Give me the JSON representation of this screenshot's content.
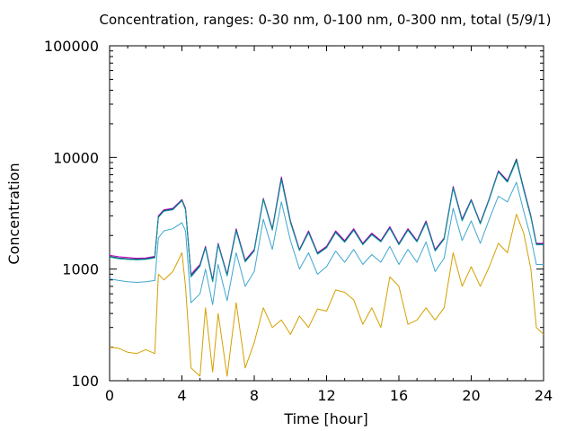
{
  "chart_data": {
    "type": "line",
    "title": "Concentration, ranges: 0-30 nm, 0-100 nm, 0-300 nm, total (5/9/1)",
    "xlabel": "Time [hour]",
    "ylabel": "Concentration",
    "xlim": [
      0,
      24
    ],
    "ylim": [
      100,
      100000
    ],
    "yscale": "log",
    "grid": false,
    "x_ticks": [
      "0",
      "4",
      "8",
      "12",
      "16",
      "20",
      "24"
    ],
    "y_ticks": [
      "100",
      "1000",
      "10000",
      "100000"
    ],
    "x": [
      0,
      0.5,
      1,
      1.5,
      2,
      2.5,
      2.7,
      3,
      3.5,
      4,
      4.2,
      4.5,
      5,
      5.3,
      5.7,
      6,
      6.5,
      7,
      7.5,
      8,
      8.5,
      9,
      9.5,
      10,
      10.5,
      11,
      11.5,
      12,
      12.5,
      13,
      13.5,
      14,
      14.5,
      15,
      15.5,
      16,
      16.5,
      17,
      17.5,
      18,
      18.5,
      19,
      19.5,
      20,
      20.5,
      21,
      21.5,
      22,
      22.5,
      22.9,
      23.3,
      23.6,
      24
    ],
    "series": [
      {
        "name": "",
        "color": "#c800c8",
        "values": [
          1330,
          1290,
          1270,
          1250,
          1260,
          1300,
          3000,
          3400,
          3500,
          4200,
          3500,
          900,
          1100,
          1600,
          800,
          1700,
          900,
          2300,
          1200,
          1500,
          4300,
          2300,
          6700,
          2700,
          1500,
          2200,
          1400,
          1600,
          2200,
          1800,
          2300,
          1700,
          2100,
          1800,
          2400,
          1700,
          2300,
          1800,
          2700,
          1500,
          1900,
          5500,
          2800,
          4200,
          2600,
          4300,
          7600,
          6200,
          9500,
          5300,
          3000,
          1700,
          1700
        ]
      },
      {
        "name": "",
        "color": "#1a3a6e",
        "values": [
          1300,
          1260,
          1240,
          1230,
          1240,
          1280,
          2950,
          3350,
          3450,
          4150,
          3450,
          870,
          1080,
          1570,
          780,
          1670,
          880,
          2250,
          1180,
          1470,
          4250,
          2260,
          6500,
          2650,
          1480,
          2150,
          1380,
          1570,
          2150,
          1760,
          2250,
          1670,
          2060,
          1770,
          2350,
          1670,
          2260,
          1770,
          2650,
          1470,
          1870,
          5400,
          2750,
          4150,
          2560,
          4250,
          7500,
          6100,
          9700,
          5200,
          2950,
          1680,
          1680
        ]
      },
      {
        "name": "",
        "color": "#009a9a",
        "values": [
          1280,
          1240,
          1220,
          1210,
          1220,
          1260,
          2900,
          3300,
          3400,
          4100,
          3400,
          850,
          1060,
          1550,
          770,
          1650,
          870,
          2200,
          1160,
          1450,
          4200,
          2230,
          6300,
          2600,
          1460,
          2120,
          1360,
          1550,
          2120,
          1740,
          2220,
          1650,
          2030,
          1750,
          2320,
          1650,
          2230,
          1750,
          2600,
          1450,
          1850,
          5300,
          2700,
          4100,
          2530,
          4200,
          7400,
          6000,
          9300,
          5100,
          2900,
          1650,
          1650
        ]
      },
      {
        "name": "",
        "color": "#3fa6d0",
        "values": [
          820,
          790,
          770,
          760,
          770,
          790,
          1900,
          2200,
          2300,
          2600,
          2200,
          500,
          600,
          1000,
          480,
          1100,
          520,
          1400,
          700,
          950,
          2800,
          1500,
          4000,
          1800,
          1000,
          1400,
          900,
          1050,
          1450,
          1150,
          1500,
          1100,
          1350,
          1150,
          1600,
          1100,
          1500,
          1150,
          1750,
          950,
          1250,
          3500,
          1800,
          2700,
          1700,
          2800,
          4500,
          4000,
          6000,
          3300,
          1900,
          1100,
          1100
        ]
      },
      {
        "name": "",
        "color": "#d4a000",
        "values": [
          200,
          195,
          180,
          175,
          190,
          175,
          900,
          800,
          950,
          1400,
          700,
          130,
          110,
          450,
          120,
          400,
          110,
          500,
          130,
          220,
          450,
          300,
          350,
          260,
          380,
          300,
          440,
          420,
          650,
          620,
          530,
          320,
          450,
          300,
          850,
          700,
          320,
          350,
          450,
          350,
          450,
          1400,
          700,
          1050,
          700,
          1050,
          1700,
          1400,
          3100,
          2100,
          1000,
          300,
          260
        ]
      }
    ]
  }
}
